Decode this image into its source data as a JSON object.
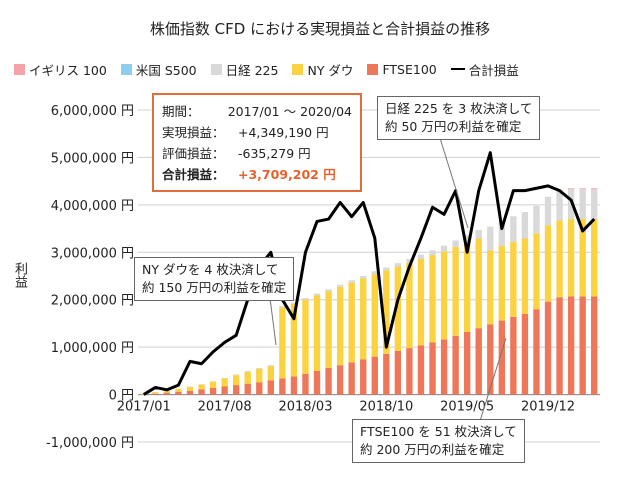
{
  "chart_data": {
    "type": "bar",
    "title": "株価指数 CFD における実現損益と合計損益の推移",
    "ylabel": "利益",
    "ylim": [
      -1000000,
      6000000
    ],
    "y_ticks": [
      "-1,000,000 円",
      "0 円",
      "1,000,000 円",
      "2,000,000 円",
      "3,000,000 円",
      "4,000,000 円",
      "5,000,000 円",
      "6,000,000 円"
    ],
    "x_tick_labels": [
      "2017/01",
      "2017/08",
      "2018/03",
      "2018/10",
      "2019/05",
      "2019/12"
    ],
    "stacked": true,
    "grid": true,
    "legend_position": "top",
    "categories": [
      "2017/01",
      "2017/02",
      "2017/03",
      "2017/04",
      "2017/05",
      "2017/06",
      "2017/07",
      "2017/08",
      "2017/09",
      "2017/10",
      "2017/11",
      "2017/12",
      "2018/01",
      "2018/02",
      "2018/03",
      "2018/04",
      "2018/05",
      "2018/06",
      "2018/07",
      "2018/08",
      "2018/09",
      "2018/10",
      "2018/11",
      "2018/12",
      "2019/01",
      "2019/02",
      "2019/03",
      "2019/04",
      "2019/05",
      "2019/06",
      "2019/07",
      "2019/08",
      "2019/09",
      "2019/10",
      "2019/11",
      "2019/12",
      "2020/01",
      "2020/02",
      "2020/03",
      "2020/04"
    ],
    "series": [
      {
        "name": "FTSE100",
        "color": "#ee7659",
        "values": [
          0,
          20000,
          40000,
          60000,
          80000,
          110000,
          140000,
          170000,
          200000,
          230000,
          260000,
          300000,
          340000,
          380000,
          440000,
          500000,
          560000,
          620000,
          680000,
          740000,
          800000,
          860000,
          920000,
          980000,
          1040000,
          1100000,
          1160000,
          1240000,
          1320000,
          1400000,
          1480000,
          1560000,
          1640000,
          1700000,
          1800000,
          1960000,
          2050000,
          2070000,
          2070000,
          2070000
        ]
      },
      {
        "name": "NY ダウ",
        "color": "#fbd23f",
        "values": [
          20000,
          30000,
          40000,
          60000,
          80000,
          100000,
          130000,
          170000,
          210000,
          250000,
          280000,
          300000,
          1500000,
          1530000,
          1560000,
          1590000,
          1620000,
          1650000,
          1680000,
          1710000,
          1740000,
          1760000,
          1780000,
          1800000,
          1820000,
          1840000,
          1860000,
          1870000,
          1880000,
          1890000,
          1560000,
          1570000,
          1580000,
          1590000,
          1600000,
          1610000,
          1620000,
          1630000,
          1630000,
          1630000
        ]
      },
      {
        "name": "日経 225",
        "color": "#d9d9d9",
        "values": [
          5000,
          5000,
          5000,
          5000,
          10000,
          10000,
          10000,
          10000,
          15000,
          20000,
          20000,
          20000,
          25000,
          30000,
          35000,
          40000,
          40000,
          45000,
          50000,
          50000,
          60000,
          60000,
          70000,
          80000,
          90000,
          100000,
          120000,
          140000,
          160000,
          180000,
          500000,
          520000,
          540000,
          560000,
          580000,
          600000,
          620000,
          630000,
          630000,
          630000
        ]
      },
      {
        "name": "米国 S500",
        "color": "#8ecdf0",
        "values": [
          0,
          0,
          0,
          0,
          0,
          0,
          0,
          0,
          0,
          0,
          0,
          0,
          0,
          0,
          0,
          0,
          0,
          0,
          0,
          0,
          0,
          0,
          0,
          0,
          0,
          0,
          0,
          0,
          0,
          0,
          0,
          0,
          0,
          0,
          0,
          0,
          0,
          0,
          0,
          0
        ]
      },
      {
        "name": "イギリス 100",
        "color": "#f4a3a8",
        "values": [
          0,
          0,
          0,
          0,
          0,
          0,
          0,
          0,
          0,
          0,
          0,
          0,
          0,
          0,
          0,
          0,
          0,
          0,
          0,
          0,
          0,
          0,
          0,
          0,
          0,
          0,
          0,
          0,
          0,
          0,
          0,
          0,
          0,
          0,
          0,
          0,
          20000,
          20000,
          20000,
          20000
        ]
      }
    ],
    "line": {
      "name": "合計損益",
      "color": "#000000",
      "values": [
        0,
        150000,
        100000,
        200000,
        700000,
        650000,
        900000,
        1100000,
        1250000,
        2000000,
        2700000,
        3000000,
        2000000,
        1600000,
        3000000,
        3650000,
        3700000,
        4050000,
        3750000,
        4050000,
        3300000,
        1000000,
        2000000,
        2700000,
        3300000,
        3950000,
        3800000,
        4300000,
        3000000,
        4300000,
        5100000,
        3500000,
        4300000,
        4300000,
        4350000,
        4400000,
        4300000,
        4100000,
        3450000,
        3700000
      ]
    }
  },
  "summary": {
    "period_label": "期間：",
    "period_value": "2017/01 ～ 2020/04",
    "realized_label": "実現損益：",
    "realized_value": "+4,349,190 円",
    "unrealized_label": "評価損益：",
    "unrealized_value": "-635,279 円",
    "total_label": "合計損益：",
    "total_value": "+3,709,202 円",
    "accent_color": "#e8602c"
  },
  "annotations": {
    "ny": [
      "NY ダウを 4 枚決済して",
      "約 150 万円の利益を確定"
    ],
    "nikkei": [
      "日経 225 を 3 枚決済して",
      "約 50 万円の利益を確定"
    ],
    "ftse": [
      "FTSE100 を 51 枚決済して",
      "約 200 万円の利益を確定"
    ]
  }
}
